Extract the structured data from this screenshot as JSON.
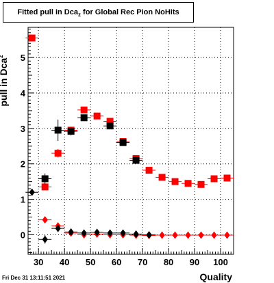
{
  "title": {
    "main": "Fitted pull in Dca",
    "subscript": "z",
    "rest": " for Global Rec Pion NoHits"
  },
  "timestamp": "Fri Dec 31 13:11:51 2021",
  "chart_data": {
    "type": "scatter",
    "xlabel": "Quality",
    "ylabel_main": "pull in Dca",
    "ylabel_subscript": "z",
    "xlim": [
      26,
      105
    ],
    "ylim": [
      -0.55,
      5.85
    ],
    "xticks": [
      30,
      40,
      50,
      60,
      70,
      80,
      90,
      100
    ],
    "yticks": [
      0,
      1,
      2,
      3,
      4,
      5
    ],
    "grid": true,
    "bin_width": 5,
    "series": [
      {
        "marker": "square",
        "color": "#ff0000",
        "x": [
          27.5,
          32.5,
          37.5,
          42.5,
          47.5,
          52.5,
          57.5,
          62.5,
          67.5,
          72.5,
          77.5,
          82.5,
          87.5,
          92.5,
          97.5,
          102.5
        ],
        "y": [
          5.55,
          1.35,
          2.3,
          2.95,
          3.52,
          3.35,
          3.2,
          2.63,
          2.15,
          1.82,
          1.62,
          1.5,
          1.45,
          1.42,
          1.58,
          1.6
        ],
        "err": [
          0.08,
          0.07,
          0.12,
          0.08,
          0.04,
          0.04,
          0.04,
          0.04,
          0.04,
          0.03,
          0.03,
          0.03,
          0.03,
          0.03,
          0.03,
          0.03
        ]
      },
      {
        "marker": "square",
        "color": "#000000",
        "x": [
          32.5,
          37.5,
          42.5,
          47.5,
          57.5,
          62.5,
          67.5
        ],
        "y": [
          1.58,
          2.95,
          2.92,
          3.3,
          3.07,
          2.6,
          2.1
        ],
        "err": [
          0.15,
          0.3,
          0.12,
          0.06,
          0.05,
          0.05,
          0.05
        ]
      },
      {
        "marker": "diamond",
        "color": "#ff0000",
        "x": [
          32.5,
          37.5,
          42.5,
          47.5,
          52.5,
          57.5,
          62.5,
          67.5,
          72.5,
          77.5,
          82.5,
          87.5,
          92.5,
          97.5,
          102.5
        ],
        "y": [
          0.42,
          0.25,
          0.05,
          0.0,
          0.02,
          0.0,
          0.0,
          -0.01,
          -0.02,
          -0.01,
          -0.01,
          -0.01,
          -0.01,
          -0.01,
          -0.01
        ],
        "err": [
          0.05,
          0.06,
          0.03,
          0.02,
          0.02,
          0.02,
          0.01,
          0.01,
          0.01,
          0.01,
          0.01,
          0.01,
          0.01,
          0.01,
          0.01
        ]
      },
      {
        "marker": "diamond",
        "color": "#000000",
        "x": [
          27.5,
          32.5,
          37.5,
          42.5,
          47.5,
          52.5,
          57.5,
          62.5,
          67.5,
          72.5
        ],
        "y": [
          1.2,
          -0.13,
          0.18,
          0.08,
          0.05,
          0.07,
          0.05,
          0.05,
          0.02,
          0.0
        ],
        "err": [
          0.08,
          0.12,
          0.1,
          0.04,
          0.03,
          0.03,
          0.03,
          0.03,
          0.02,
          0.02
        ]
      }
    ]
  }
}
